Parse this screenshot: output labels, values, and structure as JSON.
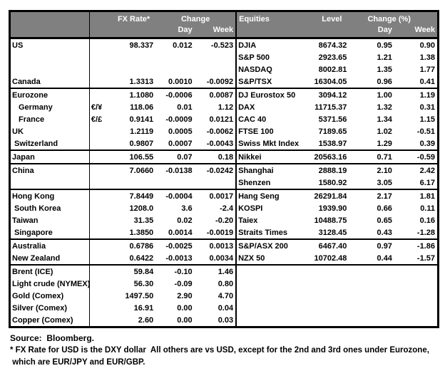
{
  "colors": {
    "header_bg": "#808080",
    "header_text": "#ffffff",
    "body_text": "#000000",
    "border": "#000000",
    "background": "#ffffff"
  },
  "header": {
    "fx_rate": "FX Rate*",
    "change": "Change",
    "day": "Day",
    "week": "Week",
    "equities": "Equities",
    "level": "Level",
    "change_pct": "Change (%)"
  },
  "notes": {
    "source": "Source:  Bloomberg.",
    "footnote1": "* FX Rate for USD is the DXY dollar  All others are vs USD, except for the 2nd and 3rd ones under Eurozone,",
    "footnote2": " which are EUR/JPY and EUR/GBP."
  },
  "rows": [
    {
      "left": {
        "label": "US",
        "indent": 0,
        "pair": "",
        "fx": "98.337",
        "day": "0.012",
        "week": "-0.523"
      },
      "right": {
        "label": "DJIA",
        "level": "8674.32",
        "day": "0.95",
        "week": "0.90"
      },
      "separator_after": false
    },
    {
      "left": {
        "label": "",
        "indent": 0,
        "pair": "",
        "fx": "",
        "day": "",
        "week": ""
      },
      "right": {
        "label": "S&P 500",
        "level": "2923.65",
        "day": "1.21",
        "week": "1.38"
      },
      "separator_after": false
    },
    {
      "left": {
        "label": "",
        "indent": 0,
        "pair": "",
        "fx": "",
        "day": "",
        "week": ""
      },
      "right": {
        "label": "NASDAQ",
        "level": "8002.81",
        "day": "1.35",
        "week": "1.77"
      },
      "separator_after": false
    },
    {
      "left": {
        "label": "Canada",
        "indent": 0,
        "pair": "",
        "fx": "1.3313",
        "day": "0.0010",
        "week": "-0.0092"
      },
      "right": {
        "label": "S&P/TSX",
        "level": "16304.05",
        "day": "0.96",
        "week": "0.41"
      },
      "separator_after": true
    },
    {
      "left": {
        "label": "Eurozone",
        "indent": 0,
        "pair": "",
        "fx": "1.1080",
        "day": "-0.0006",
        "week": "0.0087"
      },
      "right": {
        "label": "DJ Eurostox 50",
        "level": "3094.12",
        "day": "1.00",
        "week": "1.19"
      },
      "separator_after": false
    },
    {
      "left": {
        "label": "Germany",
        "indent": 2,
        "pair": "€/¥",
        "fx": "118.06",
        "day": "0.01",
        "week": "1.12"
      },
      "right": {
        "label": "DAX",
        "level": "11715.37",
        "day": "1.32",
        "week": "0.31"
      },
      "separator_after": false
    },
    {
      "left": {
        "label": "France",
        "indent": 2,
        "pair": "€/£",
        "fx": "0.9141",
        "day": "-0.0009",
        "week": "0.0121"
      },
      "right": {
        "label": "CAC 40",
        "level": "5371.56",
        "day": "1.34",
        "week": "1.15"
      },
      "separator_after": false
    },
    {
      "left": {
        "label": "UK",
        "indent": 0,
        "pair": "",
        "fx": "1.2119",
        "day": "0.0005",
        "week": "-0.0062"
      },
      "right": {
        "label": "FTSE 100",
        "level": "7189.65",
        "day": "1.02",
        "week": "-0.51"
      },
      "separator_after": false
    },
    {
      "left": {
        "label": "Switzerland",
        "indent": 1,
        "pair": "",
        "fx": "0.9807",
        "day": "0.0007",
        "week": "-0.0043"
      },
      "right": {
        "label": "Swiss Mkt Index",
        "level": "1538.97",
        "day": "1.29",
        "week": "0.39"
      },
      "separator_after": true
    },
    {
      "left": {
        "label": "Japan",
        "indent": 0,
        "pair": "",
        "fx": "106.55",
        "day": "0.07",
        "week": "0.18"
      },
      "right": {
        "label": "Nikkei",
        "level": "20563.16",
        "day": "0.71",
        "week": "-0.59"
      },
      "separator_after": true
    },
    {
      "left": {
        "label": "China",
        "indent": 0,
        "pair": "",
        "fx": "7.0660",
        "day": "-0.0138",
        "week": "-0.0242"
      },
      "right": {
        "label": "Shanghai",
        "level": "2888.19",
        "day": "2.10",
        "week": "2.42"
      },
      "separator_after": false
    },
    {
      "left": {
        "label": "",
        "indent": 0,
        "pair": "",
        "fx": "",
        "day": "",
        "week": ""
      },
      "right": {
        "label": "Shenzen",
        "level": "1580.92",
        "day": "3.05",
        "week": "6.17"
      },
      "separator_after": true
    },
    {
      "left": {
        "label": "Hong Kong",
        "indent": 0,
        "pair": "",
        "fx": "7.8449",
        "day": "-0.0004",
        "week": "0.0017"
      },
      "right": {
        "label": "Hang Seng",
        "level": "26291.84",
        "day": "2.17",
        "week": "1.81"
      },
      "separator_after": false
    },
    {
      "left": {
        "label": "South Korea",
        "indent": 1,
        "pair": "",
        "fx": "1208.0",
        "day": "3.6",
        "week": "-2.4"
      },
      "right": {
        "label": "KOSPI",
        "level": "1939.90",
        "day": "0.66",
        "week": "0.11"
      },
      "separator_after": false
    },
    {
      "left": {
        "label": "Taiwan",
        "indent": 0,
        "pair": "",
        "fx": "31.35",
        "day": "0.02",
        "week": "-0.20"
      },
      "right": {
        "label": "Taiex",
        "level": "10488.75",
        "day": "0.65",
        "week": "0.16"
      },
      "separator_after": false
    },
    {
      "left": {
        "label": "Singapore",
        "indent": 1,
        "pair": "",
        "fx": "1.3850",
        "day": "0.0014",
        "week": "-0.0019"
      },
      "right": {
        "label": "Straits Times",
        "level": "3128.45",
        "day": "0.43",
        "week": "-1.28"
      },
      "separator_after": true
    },
    {
      "left": {
        "label": "Australia",
        "indent": 0,
        "pair": "",
        "fx": "0.6786",
        "day": "-0.0025",
        "week": "0.0013"
      },
      "right": {
        "label": "S&P/ASX 200",
        "level": "6467.40",
        "day": "0.97",
        "week": "-1.86"
      },
      "separator_after": false
    },
    {
      "left": {
        "label": "New Zealand",
        "indent": 0,
        "pair": "",
        "fx": "0.6422",
        "day": "-0.0013",
        "week": "0.0034"
      },
      "right": {
        "label": "NZX 50",
        "level": "10702.48",
        "day": "0.44",
        "week": "-1.57"
      },
      "separator_after": true
    },
    {
      "left": {
        "label": "Brent (ICE)",
        "indent": 0,
        "pair": "",
        "fx": "59.84",
        "day": "-0.10",
        "week": "1.46"
      },
      "right": {
        "label": "",
        "level": "",
        "day": "",
        "week": ""
      },
      "separator_after": false
    },
    {
      "left": {
        "label": "Light crude (NYMEX)",
        "indent": 0,
        "pair": "",
        "fx": "56.30",
        "day": "-0.09",
        "week": "0.80"
      },
      "right": {
        "label": "",
        "level": "",
        "day": "",
        "week": ""
      },
      "separator_after": false
    },
    {
      "left": {
        "label": "Gold (Comex)",
        "indent": 0,
        "pair": "",
        "fx": "1497.50",
        "day": "2.90",
        "week": "4.70"
      },
      "right": {
        "label": "",
        "level": "",
        "day": "",
        "week": ""
      },
      "separator_after": false
    },
    {
      "left": {
        "label": "Silver (Comex)",
        "indent": 0,
        "pair": "",
        "fx": "16.91",
        "day": "0.00",
        "week": "0.04"
      },
      "right": {
        "label": "",
        "level": "",
        "day": "",
        "week": ""
      },
      "separator_after": false
    },
    {
      "left": {
        "label": "Copper (Comex)",
        "indent": 0,
        "pair": "",
        "fx": "2.60",
        "day": "0.00",
        "week": "0.03"
      },
      "right": {
        "label": "",
        "level": "",
        "day": "",
        "week": ""
      },
      "separator_after": false
    }
  ]
}
